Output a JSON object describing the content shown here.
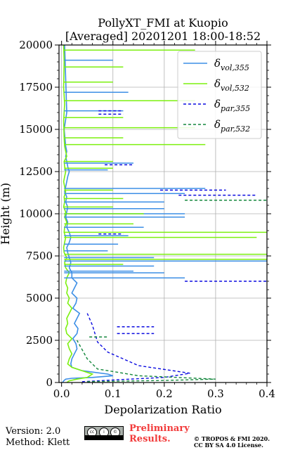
{
  "title_line1": "PollyXT_FMI at Kuopio",
  "title_line2": "[Averaged] 20201201 18:00-18:52",
  "footer": {
    "version": "Version: 2.0",
    "method": "Method: Klett",
    "preliminary_line1": "Preliminary",
    "preliminary_line2": "Results.",
    "copyright_line1": "© TROPOS & FMI 2020.",
    "copyright_line2": "CC BY SA 4.0 License.",
    "license_icon": "cc-by-sa-icon"
  },
  "chart_data": {
    "type": "line",
    "xlabel": "Depolarization Ratio",
    "ylabel": "Height (m)",
    "xlim": [
      -0.005,
      0.4
    ],
    "ylim": [
      0,
      20000
    ],
    "xticks": [
      "0.0",
      "0.1",
      "0.2",
      "0.3",
      "0.4"
    ],
    "yticks": [
      "0",
      "2500",
      "5000",
      "7500",
      "10000",
      "12500",
      "15000",
      "17500",
      "20000"
    ],
    "grid": true,
    "legend_position": "top-right",
    "series": [
      {
        "name": "δvol,355",
        "legend_main": "δ",
        "legend_sub": "vol,355",
        "color": "#3d8fe6",
        "style": "solid",
        "x": [
          0.002,
          0.004,
          0.008,
          0.02,
          0.06,
          0.1,
          0.09,
          0.04,
          0.02,
          0.018,
          0.02,
          0.025,
          0.03,
          0.028,
          0.022,
          0.03,
          0.032,
          0.025,
          0.03,
          0.035,
          0.022,
          0.028,
          0.03,
          0.02,
          0.025,
          0.03,
          0.02,
          0.02,
          0.015,
          0.018,
          0.015,
          0.012,
          0.01,
          0.015,
          0.018,
          0.015,
          0.01,
          0.012,
          0.008,
          0.01,
          0.012,
          0.008,
          0.01,
          0.006,
          0.008,
          0.01,
          0.012,
          0.015,
          0.012,
          0.01,
          0.008,
          0.01,
          0.008,
          0.005,
          0.01,
          0.008,
          0.006
        ],
        "y": [
          0,
          100,
          200,
          250,
          300,
          400,
          500,
          700,
          900,
          1100,
          1400,
          1700,
          2000,
          2300,
          2600,
          2900,
          3200,
          3500,
          3800,
          4100,
          4400,
          4700,
          5000,
          5300,
          5600,
          5900,
          6200,
          6500,
          6800,
          7100,
          7400,
          7700,
          8000,
          8300,
          8600,
          8900,
          9200,
          9500,
          9800,
          10100,
          10400,
          10700,
          11000,
          11300,
          11600,
          11900,
          12200,
          12500,
          12800,
          13100,
          13400,
          13700,
          14000,
          15000,
          16000,
          18000,
          20000
        ]
      },
      {
        "name": "δvol,532",
        "legend_main": "δ",
        "legend_sub": "vol,532",
        "color": "#7cf00f",
        "style": "solid",
        "x": [
          0.01,
          0.015,
          0.03,
          0.05,
          0.06,
          0.04,
          0.02,
          0.012,
          0.015,
          0.02,
          0.015,
          0.012,
          0.02,
          0.01,
          0.008,
          0.012,
          0.01,
          0.015,
          0.02,
          0.012,
          0.015,
          0.01,
          0.012,
          0.008,
          0.01,
          0.015,
          0.008,
          0.006,
          0.01,
          0.005,
          0.004,
          0.006,
          0.008,
          0.005,
          0.006,
          0.01,
          0.006,
          0.008,
          0.004,
          0.006,
          0.005,
          0.008,
          0.006,
          0.004,
          0.006,
          0.008,
          0.006,
          0.005,
          0.01,
          0.008,
          0.006,
          0.005,
          0.004,
          0.006,
          0.004,
          0.005,
          0.004
        ],
        "y": [
          0,
          100,
          200,
          300,
          500,
          700,
          900,
          1100,
          1400,
          1700,
          2000,
          2300,
          2600,
          2900,
          3200,
          3500,
          3800,
          4100,
          4400,
          4700,
          5000,
          5300,
          5600,
          5900,
          6200,
          6500,
          6800,
          7100,
          7400,
          7700,
          8000,
          8300,
          8600,
          8900,
          9200,
          9500,
          9800,
          10100,
          10400,
          10700,
          11000,
          11300,
          11600,
          11900,
          12200,
          12500,
          12800,
          13100,
          13400,
          13700,
          14000,
          14500,
          15500,
          16500,
          17500,
          19000,
          20000
        ]
      },
      {
        "name": "δpar,355",
        "legend_main": "δ",
        "legend_sub": "par,355",
        "color": "#0a0ae0",
        "style": "dashed",
        "x": [
          0.04,
          0.12,
          0.2,
          0.25,
          0.15,
          0.09,
          0.07,
          0.06,
          0.05
        ],
        "y": [
          50,
          180,
          300,
          550,
          1000,
          1800,
          2400,
          3400,
          4100
        ]
      },
      {
        "name": "δpar,532",
        "legend_main": "δ",
        "legend_sub": "par,532",
        "color": "#14873d",
        "style": "dashed",
        "x": [
          0.05,
          0.2,
          0.3,
          0.15,
          0.07,
          0.05,
          0.03
        ],
        "y": [
          50,
          120,
          200,
          400,
          800,
          1400,
          2500
        ]
      }
    ],
    "spikes": [
      {
        "series": 0,
        "x": 0.1,
        "y": 19100
      },
      {
        "series": 0,
        "x": 0.13,
        "y": 17200
      },
      {
        "series": 0,
        "x": 0.12,
        "y": 16100
      },
      {
        "series": 0,
        "x": 0.14,
        "y": 13000
      },
      {
        "series": 0,
        "x": 0.09,
        "y": 12600
      },
      {
        "series": 0,
        "x": 0.28,
        "y": 11500
      },
      {
        "series": 0,
        "x": 0.24,
        "y": 11200
      },
      {
        "series": 0,
        "x": 0.2,
        "y": 10700
      },
      {
        "series": 0,
        "x": 0.2,
        "y": 10300
      },
      {
        "series": 0,
        "x": 0.24,
        "y": 10000
      },
      {
        "series": 0,
        "x": 0.24,
        "y": 9800
      },
      {
        "series": 0,
        "x": 0.16,
        "y": 9200
      },
      {
        "series": 0,
        "x": 0.13,
        "y": 8700
      },
      {
        "series": 0,
        "x": 0.11,
        "y": 8200
      },
      {
        "series": 0,
        "x": 0.09,
        "y": 7800
      },
      {
        "series": 0,
        "x": 0.18,
        "y": 7400
      },
      {
        "series": 0,
        "x": 0.4,
        "y": 7200
      },
      {
        "series": 0,
        "x": 0.18,
        "y": 6900
      },
      {
        "series": 0,
        "x": 0.14,
        "y": 6600
      },
      {
        "series": 0,
        "x": 0.2,
        "y": 6500
      },
      {
        "series": 0,
        "x": 0.24,
        "y": 6200
      },
      {
        "series": 1,
        "x": 0.26,
        "y": 19700
      },
      {
        "series": 1,
        "x": 0.12,
        "y": 18700
      },
      {
        "series": 1,
        "x": 0.1,
        "y": 17800
      },
      {
        "series": 1,
        "x": 0.26,
        "y": 16700
      },
      {
        "series": 1,
        "x": 0.12,
        "y": 15700
      },
      {
        "series": 1,
        "x": 0.26,
        "y": 15100
      },
      {
        "series": 1,
        "x": 0.12,
        "y": 14500
      },
      {
        "series": 1,
        "x": 0.28,
        "y": 14100
      },
      {
        "series": 1,
        "x": 0.1,
        "y": 13100
      },
      {
        "series": 1,
        "x": 0.1,
        "y": 12700
      },
      {
        "series": 1,
        "x": 0.1,
        "y": 11400
      },
      {
        "series": 1,
        "x": 0.12,
        "y": 10900
      },
      {
        "series": 1,
        "x": 0.1,
        "y": 10400
      },
      {
        "series": 1,
        "x": 0.16,
        "y": 10000
      },
      {
        "series": 1,
        "x": 0.14,
        "y": 9400
      },
      {
        "series": 1,
        "x": 0.4,
        "y": 8900
      },
      {
        "series": 1,
        "x": 0.38,
        "y": 8600
      },
      {
        "series": 1,
        "x": 0.4,
        "y": 7600
      },
      {
        "series": 1,
        "x": 0.4,
        "y": 7300
      },
      {
        "series": 1,
        "x": 0.12,
        "y": 7000
      },
      {
        "series": 2,
        "x": 0.12,
        "y": 16100
      },
      {
        "series": 2,
        "x": 0.12,
        "y": 15900
      },
      {
        "series": 2,
        "x": 0.14,
        "y": 12900
      },
      {
        "series": 2,
        "x": 0.38,
        "y": 11100
      },
      {
        "series": 2,
        "x": 0.32,
        "y": 11400
      },
      {
        "series": 2,
        "x": 0.4,
        "y": 6000
      },
      {
        "series": 2,
        "x": 0.12,
        "y": 8800
      },
      {
        "series": 2,
        "x": 0.18,
        "y": 2900
      },
      {
        "series": 2,
        "x": 0.18,
        "y": 3300
      },
      {
        "series": 3,
        "x": 0.4,
        "y": 10800
      },
      {
        "series": 3,
        "x": 0.09,
        "y": 2700
      }
    ]
  }
}
